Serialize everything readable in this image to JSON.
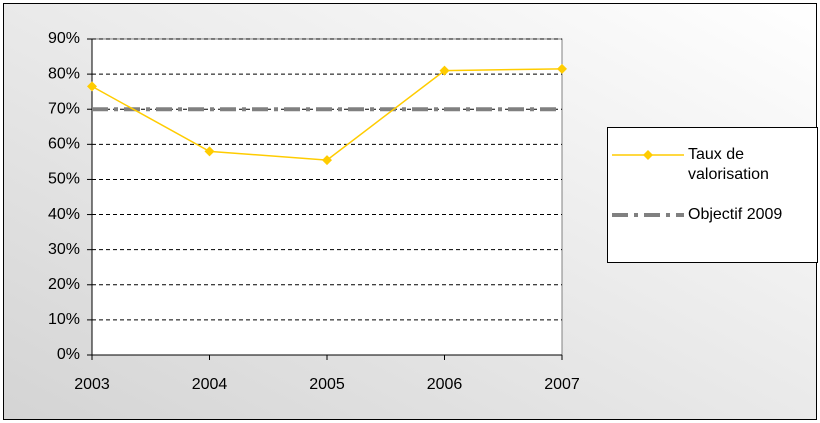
{
  "chart_data": {
    "type": "line",
    "categories": [
      "2003",
      "2004",
      "2005",
      "2006",
      "2007"
    ],
    "series": [
      {
        "name": "Taux de valorisation",
        "color": "#ffcc00",
        "values": [
          76.5,
          58,
          55.5,
          81,
          81.5
        ]
      },
      {
        "name": "Objectif 2009",
        "color": "#808080",
        "values": [
          70,
          70,
          70,
          70,
          70
        ]
      }
    ],
    "ylim": [
      0,
      90
    ],
    "yticks": [
      {
        "value": 0,
        "label": "0%"
      },
      {
        "value": 10,
        "label": "10%"
      },
      {
        "value": 20,
        "label": "20%"
      },
      {
        "value": 30,
        "label": "30%"
      },
      {
        "value": 40,
        "label": "40%"
      },
      {
        "value": 50,
        "label": "50%"
      },
      {
        "value": 60,
        "label": "60%"
      },
      {
        "value": 70,
        "label": "70%"
      },
      {
        "value": 80,
        "label": "80%"
      },
      {
        "value": 90,
        "label": "90%"
      }
    ],
    "grid": true,
    "legend": "right"
  }
}
